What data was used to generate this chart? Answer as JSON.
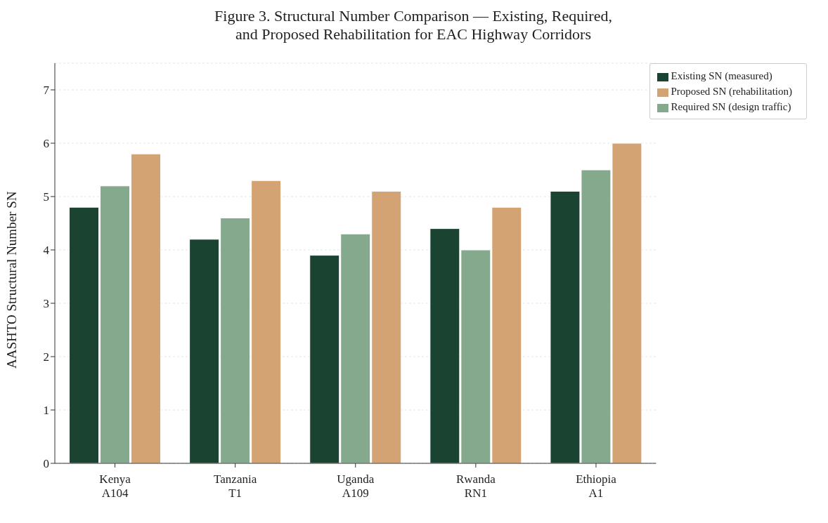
{
  "chart_data": {
    "type": "bar",
    "title": "Figure 3.  Structural Number Comparison — Existing, Required,\nand Proposed Rehabilitation for EAC Highway Corridors",
    "ylabel": "AASHTO Structural Number SN",
    "categories": [
      "Kenya\nA104",
      "Tanzania\nT1",
      "Uganda\nA109",
      "Rwanda\nRN1",
      "Ethiopia\nA1"
    ],
    "series": [
      {
        "name": "Existing SN (measured)",
        "color": "#1b4332",
        "values": [
          4.8,
          4.2,
          3.9,
          4.4,
          5.1
        ]
      },
      {
        "name": "Required SN (design traffic)",
        "color": "#84a98c",
        "values": [
          5.2,
          4.6,
          4.3,
          4.0,
          5.5
        ]
      },
      {
        "name": "Proposed SN (rehabilitation)",
        "color": "#d4a373",
        "values": [
          5.8,
          5.3,
          5.1,
          4.8,
          6.0
        ]
      }
    ],
    "ylim": [
      0,
      7.5
    ],
    "yticks": [
      0,
      1,
      2,
      3,
      4,
      5,
      6,
      7
    ],
    "grid": "y",
    "legend": "top right"
  }
}
